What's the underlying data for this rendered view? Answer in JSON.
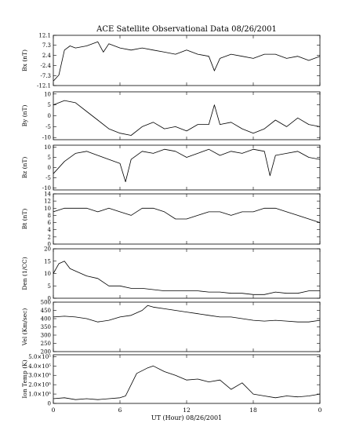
{
  "title": "ACE Satellite Observational Data   08/26/2001",
  "xlabel": "UT (Hour)   08/26/2001",
  "x_ticks": [
    "0",
    "6",
    "12",
    "18",
    "0"
  ],
  "chart_data": [
    {
      "type": "line",
      "ylabel": "Bx (nT)",
      "ylim": [
        -12.1,
        12.1
      ],
      "y_ticks": [
        "12.1",
        "7.3",
        "2.4",
        "-2.4",
        "-7.3",
        "-12.1"
      ],
      "y_tick_values": [
        12.1,
        7.3,
        2.4,
        -2.4,
        -7.3,
        -12.1
      ],
      "x": [
        0,
        0.5,
        1,
        1.5,
        2,
        3,
        4,
        4.5,
        5,
        6,
        7,
        8,
        9,
        10,
        11,
        12,
        13,
        14,
        14.5,
        15,
        16,
        17,
        18,
        19,
        20,
        21,
        22,
        23,
        24
      ],
      "y": [
        -10,
        -7,
        5,
        7,
        6,
        7,
        9,
        4,
        8,
        6,
        5,
        6,
        5,
        4,
        3,
        5,
        3,
        2,
        -5,
        1,
        3,
        2,
        1,
        3,
        3,
        1,
        2,
        0,
        2
      ]
    },
    {
      "type": "line",
      "ylabel": "By (nT)",
      "ylim": [
        -11,
        11
      ],
      "y_ticks": [
        "10",
        "5",
        "0",
        "-5",
        "-10"
      ],
      "y_tick_values": [
        10,
        5,
        0,
        -5,
        -10
      ],
      "x": [
        0,
        1,
        2,
        3,
        4,
        5,
        6,
        7,
        8,
        9,
        10,
        11,
        12,
        13,
        14,
        14.5,
        15,
        16,
        17,
        18,
        19,
        20,
        21,
        22,
        23,
        24
      ],
      "y": [
        5,
        7,
        6,
        2,
        -2,
        -6,
        -8,
        -9,
        -5,
        -3,
        -6,
        -5,
        -7,
        -4,
        -4,
        5,
        -4,
        -3,
        -6,
        -8,
        -6,
        -2,
        -5,
        -1,
        -4,
        -5
      ]
    },
    {
      "type": "line",
      "ylabel": "Bz (nT)",
      "ylim": [
        -11,
        11
      ],
      "y_ticks": [
        "10",
        "5",
        "0",
        "-5",
        "-10"
      ],
      "y_tick_values": [
        10,
        5,
        0,
        -5,
        -10
      ],
      "x": [
        0,
        1,
        2,
        3,
        4,
        5,
        6,
        6.5,
        7,
        8,
        9,
        10,
        11,
        12,
        13,
        14,
        15,
        16,
        17,
        18,
        19,
        19.5,
        20,
        21,
        22,
        23,
        24
      ],
      "y": [
        -3,
        3,
        7,
        8,
        6,
        4,
        2,
        -7,
        4,
        8,
        7,
        9,
        8,
        5,
        7,
        9,
        6,
        8,
        7,
        9,
        8,
        -4,
        6,
        7,
        8,
        5,
        4
      ]
    },
    {
      "type": "line",
      "ylabel": "Bt (nT)",
      "ylim": [
        0,
        14
      ],
      "y_ticks": [
        "14",
        "12",
        "10",
        "8",
        "6",
        "4",
        "2",
        "0"
      ],
      "y_tick_values": [
        14,
        12,
        10,
        8,
        6,
        4,
        2,
        0
      ],
      "x": [
        0,
        1,
        2,
        3,
        4,
        5,
        6,
        7,
        8,
        9,
        10,
        11,
        12,
        13,
        14,
        15,
        16,
        17,
        18,
        19,
        20,
        21,
        22,
        23,
        24
      ],
      "y": [
        9,
        10,
        10,
        10,
        9,
        10,
        9,
        8,
        10,
        10,
        9,
        7,
        7,
        8,
        9,
        9,
        8,
        9,
        9,
        10,
        10,
        9,
        8,
        7,
        6
      ]
    },
    {
      "type": "line",
      "ylabel": "Den (1/CC)",
      "ylim": [
        0,
        20
      ],
      "y_ticks": [
        "20",
        "15",
        "10",
        "5",
        "0"
      ],
      "y_tick_values": [
        20,
        15,
        10,
        5,
        0
      ],
      "x": [
        0,
        0.5,
        1,
        1.5,
        2,
        3,
        4,
        5,
        6,
        7,
        8,
        9,
        10,
        11,
        12,
        13,
        14,
        15,
        16,
        17,
        18,
        19,
        20,
        21,
        22,
        23,
        24
      ],
      "y": [
        10,
        14,
        15,
        12,
        11,
        9,
        8,
        5,
        5,
        4,
        4,
        3.5,
        3,
        3,
        3,
        3,
        2.5,
        2.5,
        2,
        2,
        1.5,
        1.5,
        2.5,
        2,
        2,
        3,
        3
      ]
    },
    {
      "type": "line",
      "ylabel": "Vel (Km/sec)",
      "ylim": [
        200,
        500
      ],
      "y_ticks": [
        "500",
        "450",
        "400",
        "350",
        "300",
        "250",
        "200"
      ],
      "y_tick_values": [
        500,
        450,
        400,
        350,
        300,
        250,
        200
      ],
      "x": [
        0,
        1,
        2,
        3,
        4,
        5,
        6,
        7,
        8,
        8.5,
        9,
        10,
        11,
        12,
        13,
        14,
        15,
        16,
        17,
        18,
        19,
        20,
        21,
        22,
        23,
        24
      ],
      "y": [
        410,
        415,
        410,
        400,
        380,
        390,
        410,
        420,
        450,
        480,
        470,
        460,
        450,
        440,
        430,
        420,
        410,
        410,
        400,
        390,
        385,
        390,
        385,
        380,
        380,
        390
      ]
    },
    {
      "type": "line",
      "ylabel": "Ion Temp (K)",
      "ylim": [
        0,
        520000
      ],
      "y_ticks": [
        "5.0×10⁵",
        "4.0×10⁵",
        "3.0×10⁵",
        "2.0×10⁵",
        "1.0×10⁵",
        "0"
      ],
      "y_tick_values": [
        500000,
        400000,
        300000,
        200000,
        100000,
        0
      ],
      "x": [
        0,
        1,
        2,
        3,
        4,
        5,
        6,
        6.5,
        7,
        7.5,
        8,
        8.5,
        9,
        10,
        11,
        12,
        13,
        14,
        15,
        16,
        17,
        18,
        19,
        20,
        21,
        22,
        23,
        24
      ],
      "y": [
        50000,
        60000,
        40000,
        50000,
        40000,
        50000,
        60000,
        80000,
        200000,
        320000,
        350000,
        380000,
        400000,
        340000,
        300000,
        250000,
        260000,
        230000,
        250000,
        150000,
        220000,
        100000,
        80000,
        60000,
        80000,
        70000,
        80000,
        100000
      ]
    }
  ]
}
